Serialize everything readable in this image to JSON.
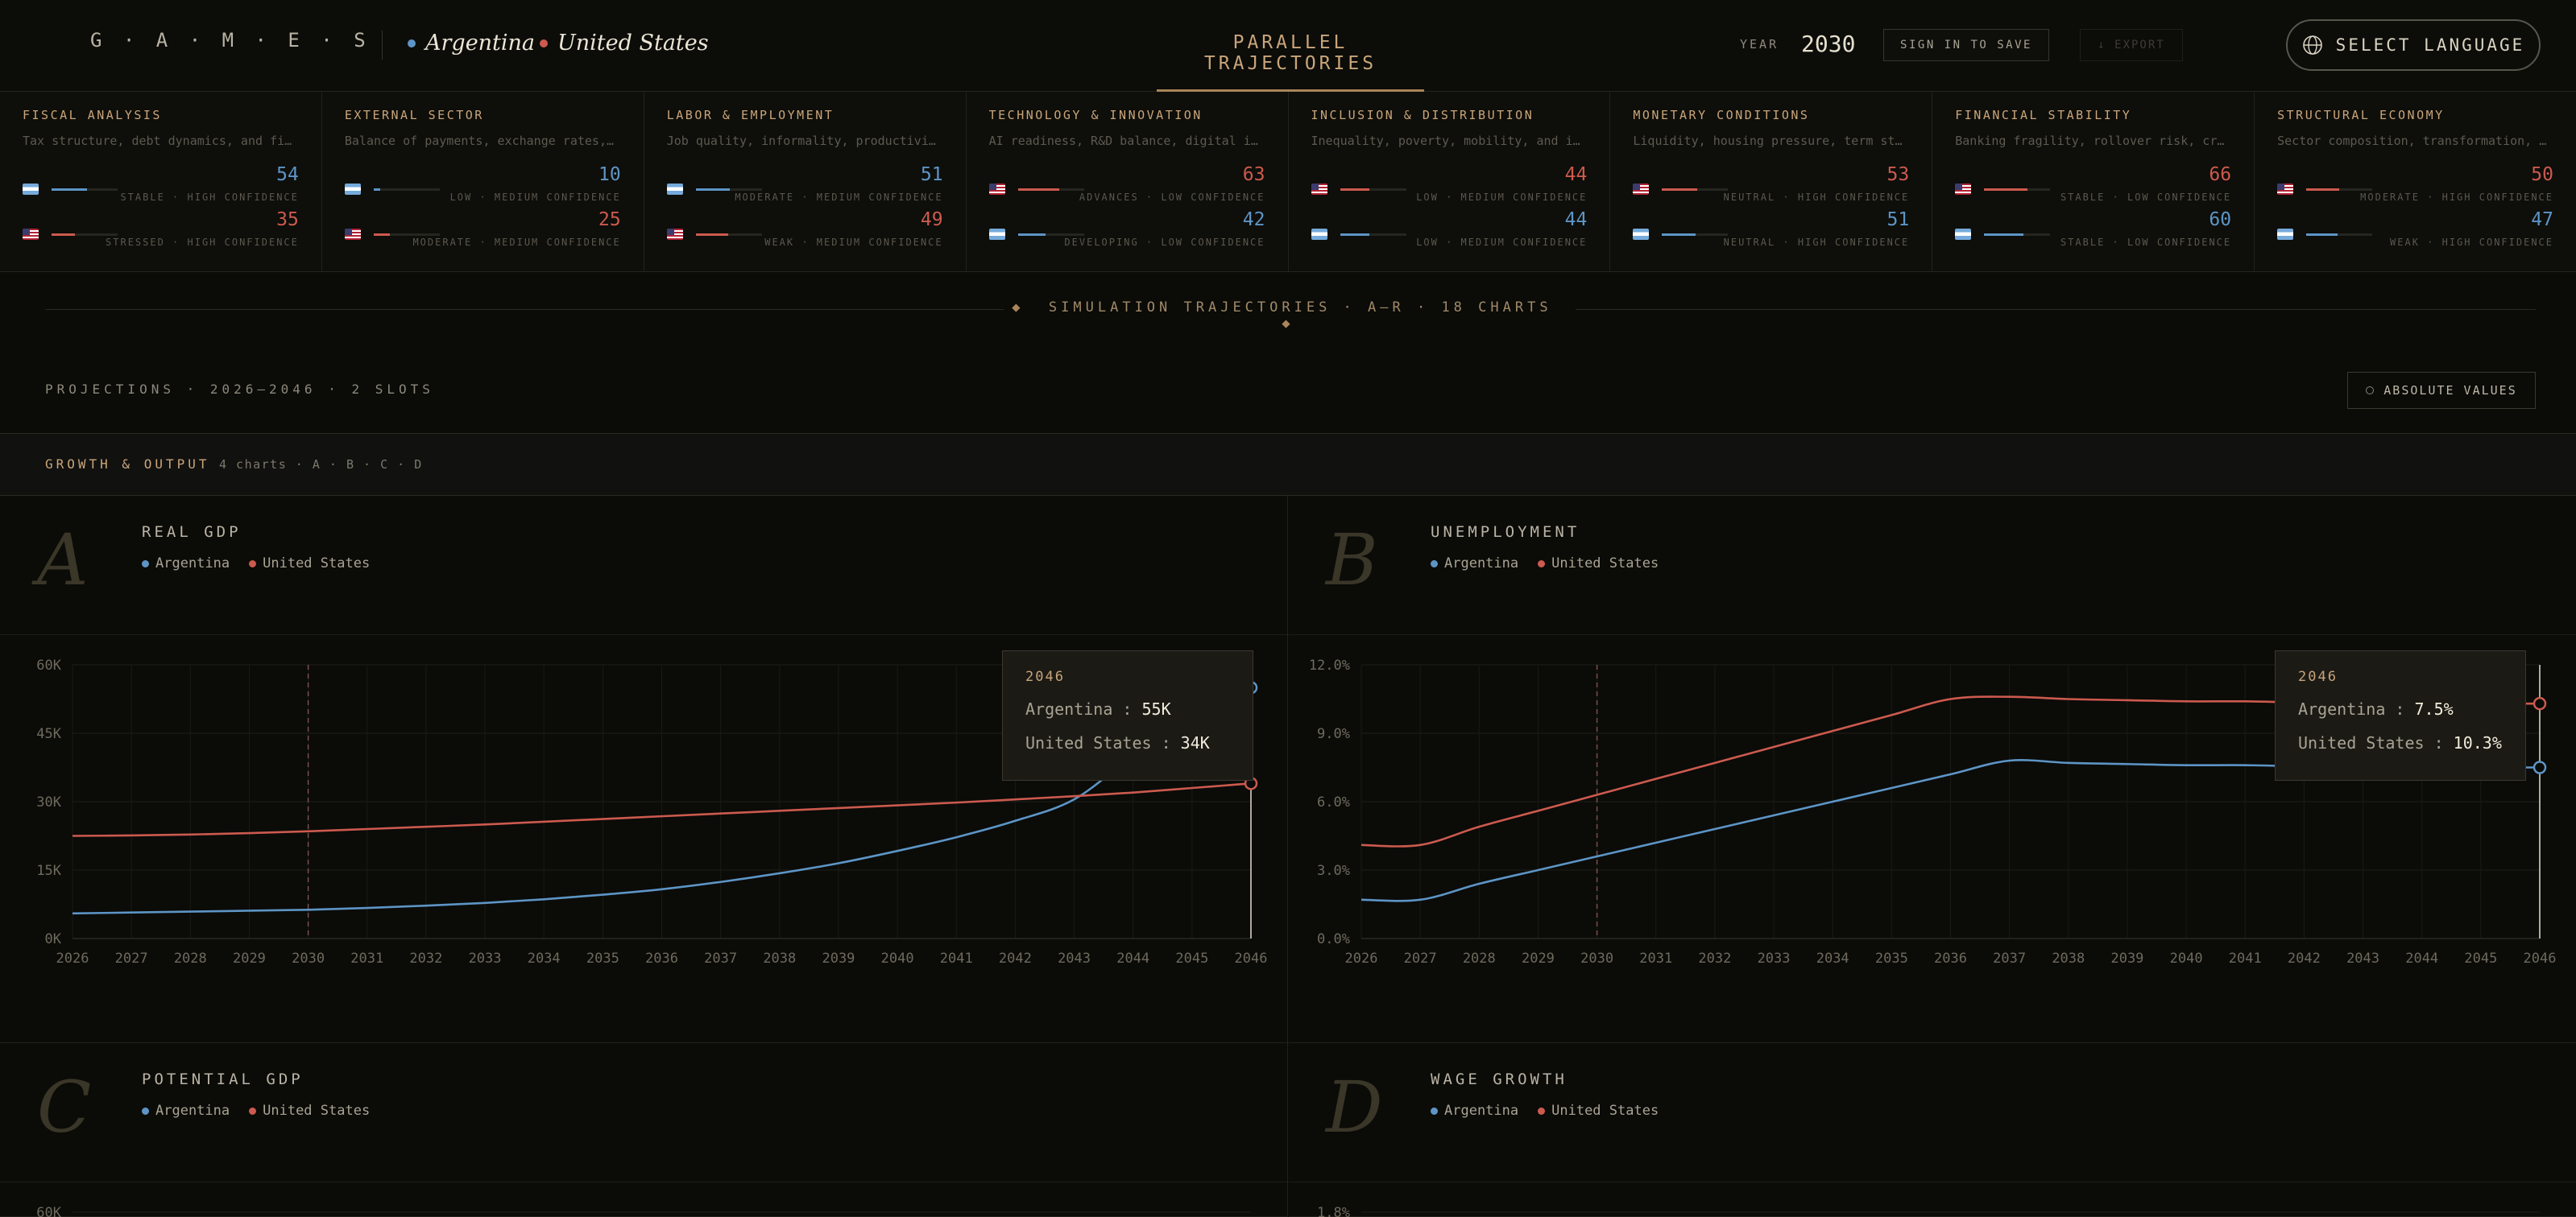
{
  "header": {
    "logo": "G · A · M · E · S",
    "country_a": "Argentina",
    "country_b": "United States",
    "nav_title": "PARALLEL TRAJECTORIES",
    "year_label": "YEAR",
    "year_value": "2030",
    "sign_in_label": "SIGN IN TO SAVE",
    "export_label": "↓ EXPORT",
    "language_label": "SELECT LANGUAGE"
  },
  "colors": {
    "argentina": "#5d95c6",
    "united_states": "#cc5a4e",
    "accent": "#c9a57a"
  },
  "cards": [
    {
      "title": "FISCAL ANALYSIS",
      "desc": "Tax structure, debt dynamics, and fiscal space",
      "rows": [
        {
          "flag": "ar",
          "score": "54",
          "fill": 0.54,
          "status": "STABLE · HIGH CONFIDENCE"
        },
        {
          "flag": "us",
          "score": "35",
          "fill": 0.35,
          "status": "STRESSED · HIGH CONFIDENCE"
        }
      ]
    },
    {
      "title": "EXTERNAL SECTOR",
      "desc": "Balance of payments, exchange rates, and reserves",
      "rows": [
        {
          "flag": "ar",
          "score": "10",
          "fill": 0.1,
          "status": "LOW · MEDIUM CONFIDENCE"
        },
        {
          "flag": "us",
          "score": "25",
          "fill": 0.25,
          "status": "MODERATE · MEDIUM CONFIDENCE"
        }
      ]
    },
    {
      "title": "LABOR & EMPLOYMENT",
      "desc": "Job quality, informality, productivity growth",
      "rows": [
        {
          "flag": "ar",
          "score": "51",
          "fill": 0.51,
          "status": "MODERATE · MEDIUM CONFIDENCE"
        },
        {
          "flag": "us",
          "score": "49",
          "fill": 0.49,
          "status": "WEAK · MEDIUM CONFIDENCE"
        }
      ]
    },
    {
      "title": "TECHNOLOGY & INNOVATION",
      "desc": "AI readiness, R&D balance, digital infrastructure",
      "rows": [
        {
          "flag": "us",
          "score": "63",
          "fill": 0.63,
          "status": "ADVANCES · LOW CONFIDENCE"
        },
        {
          "flag": "ar",
          "score": "42",
          "fill": 0.42,
          "status": "DEVELOPING · LOW CONFIDENCE"
        }
      ]
    },
    {
      "title": "INCLUSION & DISTRIBUTION",
      "desc": "Inequality, poverty, mobility, and inclusion",
      "rows": [
        {
          "flag": "us",
          "score": "44",
          "fill": 0.44,
          "status": "LOW · MEDIUM CONFIDENCE"
        },
        {
          "flag": "ar",
          "score": "44",
          "fill": 0.44,
          "status": "LOW · MEDIUM CONFIDENCE"
        }
      ]
    },
    {
      "title": "MONETARY CONDITIONS",
      "desc": "Liquidity, housing pressure, term structure",
      "rows": [
        {
          "flag": "us",
          "score": "53",
          "fill": 0.53,
          "status": "NEUTRAL · HIGH CONFIDENCE"
        },
        {
          "flag": "ar",
          "score": "51",
          "fill": 0.51,
          "status": "NEUTRAL · HIGH CONFIDENCE"
        }
      ]
    },
    {
      "title": "FINANCIAL STABILITY",
      "desc": "Banking fragility, rollover risk, credit cycle",
      "rows": [
        {
          "flag": "us",
          "score": "66",
          "fill": 0.66,
          "status": "STABLE · LOW CONFIDENCE"
        },
        {
          "flag": "ar",
          "score": "60",
          "fill": 0.6,
          "status": "STABLE · LOW CONFIDENCE"
        }
      ]
    },
    {
      "title": "STRUCTURAL ECONOMY",
      "desc": "Sector composition, transformation, diversification",
      "rows": [
        {
          "flag": "us",
          "score": "50",
          "fill": 0.5,
          "status": "MODERATE · HIGH CONFIDENCE"
        },
        {
          "flag": "ar",
          "score": "47",
          "fill": 0.47,
          "status": "WEAK · HIGH CONFIDENCE"
        }
      ]
    }
  ],
  "section": {
    "title": "SIMULATION TRAJECTORIES · A–R · 18 CHARTS",
    "projections_label": "PROJECTIONS · 2026–2046 · 2 SLOTS",
    "absolute_values_label": "ABSOLUTE VALUES",
    "group_title": "GROWTH & OUTPUT",
    "group_meta": "4 charts · A · B · C · D"
  },
  "panels": [
    {
      "letter": "A",
      "title": "REAL GDP",
      "legend": [
        "Argentina",
        "United States"
      ]
    },
    {
      "letter": "B",
      "title": "UNEMPLOYMENT",
      "legend": [
        "Argentina",
        "United States"
      ]
    },
    {
      "letter": "C",
      "title": "POTENTIAL GDP",
      "legend": [
        "Argentina",
        "United States"
      ]
    },
    {
      "letter": "D",
      "title": "WAGE GROWTH",
      "legend": [
        "Argentina",
        "United States"
      ]
    }
  ],
  "tooltips": [
    {
      "year": "2046",
      "a_label": "Argentina",
      "a_value": "55K",
      "b_label": "United States",
      "b_value": "34K"
    },
    {
      "year": "2046",
      "a_label": "Argentina",
      "a_value": "7.5%",
      "b_label": "United States",
      "b_value": "10.3%"
    }
  ],
  "chart_data": [
    {
      "type": "line",
      "title": "REAL GDP",
      "x": [
        2026,
        2027,
        2028,
        2029,
        2030,
        2031,
        2032,
        2033,
        2034,
        2035,
        2036,
        2037,
        2038,
        2039,
        2040,
        2041,
        2042,
        2043,
        2044,
        2045,
        2046
      ],
      "ylim": [
        0,
        60000
      ],
      "yticks": [
        "0K",
        "15K",
        "30K",
        "45K",
        "60K"
      ],
      "marker_year": 2030,
      "hover_year": 2046,
      "series": [
        {
          "name": "Argentina",
          "values": [
            5500,
            5700,
            5900,
            6100,
            6300,
            6700,
            7200,
            7800,
            8600,
            9600,
            10800,
            12400,
            14300,
            16500,
            19200,
            22200,
            25800,
            30500,
            40000,
            47500,
            55000
          ]
        },
        {
          "name": "United States",
          "values": [
            22500,
            22600,
            22800,
            23100,
            23500,
            24000,
            24500,
            25000,
            25600,
            26200,
            26800,
            27400,
            28000,
            28600,
            29200,
            29800,
            30500,
            31200,
            32000,
            33000,
            34000
          ]
        }
      ]
    },
    {
      "type": "line",
      "title": "UNEMPLOYMENT",
      "x": [
        2026,
        2027,
        2028,
        2029,
        2030,
        2031,
        2032,
        2033,
        2034,
        2035,
        2036,
        2037,
        2038,
        2039,
        2040,
        2041,
        2042,
        2043,
        2044,
        2045,
        2046
      ],
      "ylim": [
        0,
        12
      ],
      "yticks": [
        "0.0%",
        "3.0%",
        "6.0%",
        "9.0%",
        "12.0%"
      ],
      "marker_year": 2030,
      "hover_year": 2046,
      "series": [
        {
          "name": "Argentina",
          "values": [
            1.7,
            1.7,
            2.4,
            3.0,
            3.6,
            4.2,
            4.8,
            5.4,
            6.0,
            6.6,
            7.2,
            7.8,
            7.7,
            7.65,
            7.6,
            7.6,
            7.55,
            7.55,
            7.5,
            7.5,
            7.5
          ]
        },
        {
          "name": "United States",
          "values": [
            4.1,
            4.1,
            4.9,
            5.6,
            6.3,
            7.0,
            7.7,
            8.4,
            9.1,
            9.8,
            10.5,
            10.6,
            10.5,
            10.45,
            10.4,
            10.4,
            10.35,
            10.35,
            10.3,
            10.3,
            10.3
          ]
        }
      ]
    },
    {
      "type": "line",
      "title": "POTENTIAL GDP",
      "yticks": [
        "60K"
      ]
    },
    {
      "type": "line",
      "title": "WAGE GROWTH",
      "yticks": [
        "1.8%"
      ]
    }
  ]
}
